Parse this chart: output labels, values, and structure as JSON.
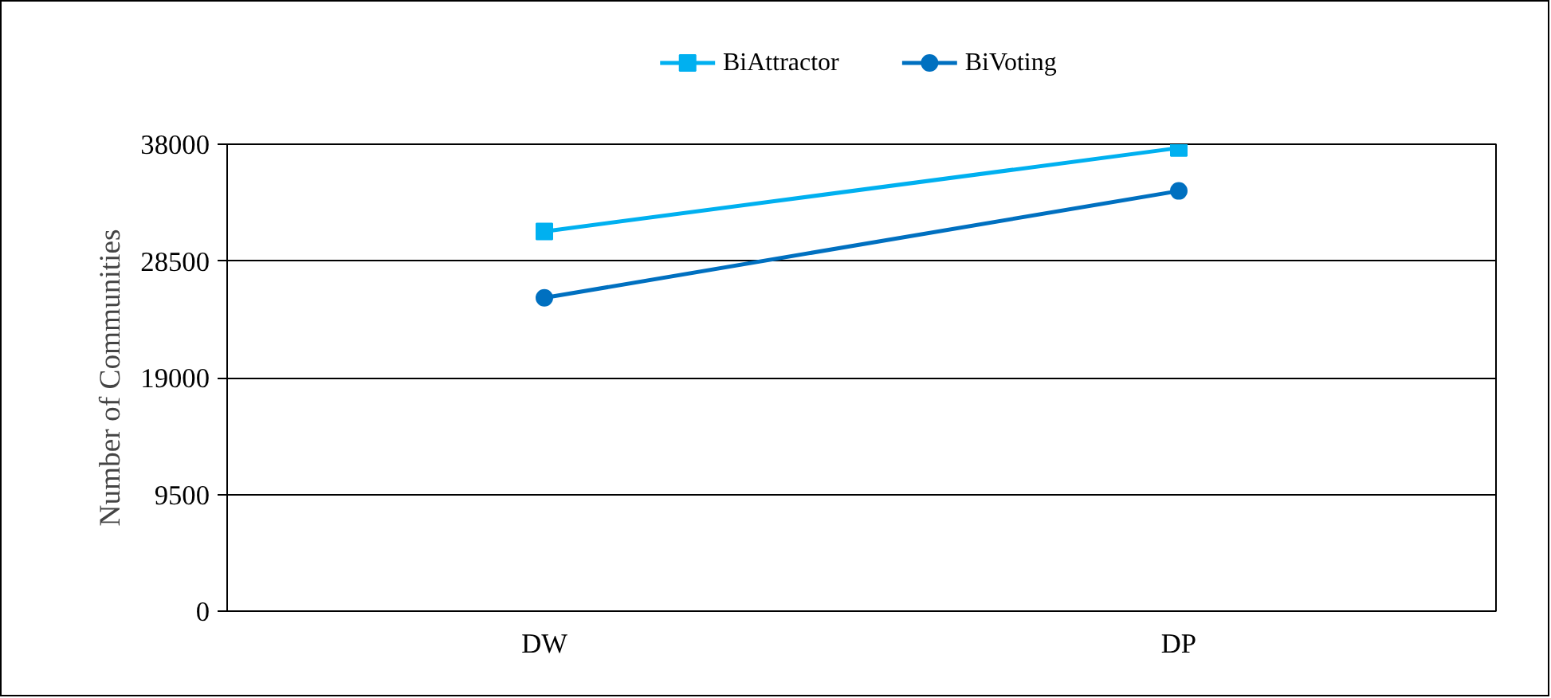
{
  "chart_data": {
    "type": "line",
    "ylabel": "Number of Communities",
    "categories": [
      "DW",
      "DP"
    ],
    "series": [
      {
        "name": "BiAttractor",
        "color": "#00b0f0",
        "marker": "square",
        "values": [
          30900,
          37700
        ]
      },
      {
        "name": "BiVoting",
        "color": "#0070c0",
        "marker": "circle",
        "values": [
          25500,
          34200
        ]
      }
    ],
    "ylim": [
      0,
      38000
    ],
    "yticks": [
      0,
      9500,
      19000,
      28500,
      38000
    ],
    "grid": "y",
    "legend": "top",
    "line_style": "solid"
  }
}
